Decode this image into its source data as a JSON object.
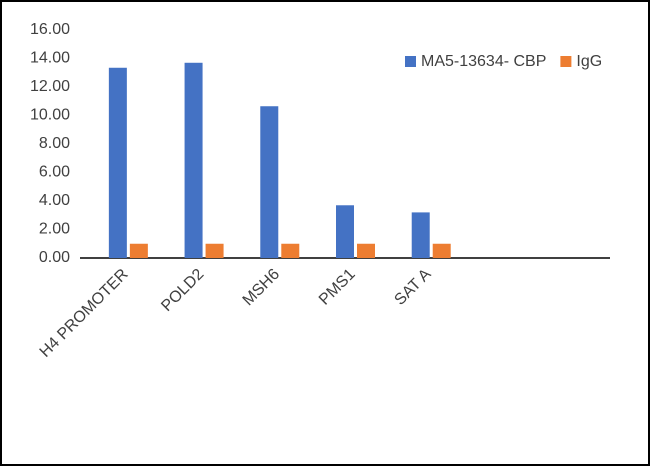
{
  "chart_data": {
    "type": "bar",
    "categories": [
      "H4 PROMOTER",
      "POLD2",
      "MSH6",
      "PMS1",
      "SAT A",
      null,
      null
    ],
    "series": [
      {
        "name": "MA5-13634- CBP",
        "color": "#4472c4",
        "values": [
          13.35,
          13.7,
          10.65,
          3.7,
          3.2,
          null,
          null
        ]
      },
      {
        "name": "IgG",
        "color": "#ed7d31",
        "values": [
          1,
          1,
          1,
          1,
          1,
          null,
          null
        ]
      }
    ],
    "ylim": [
      0,
      16
    ],
    "yticks": [
      {
        "value": 0,
        "label": "0.00"
      },
      {
        "value": 2,
        "label": "2.00"
      },
      {
        "value": 4,
        "label": "4.00"
      },
      {
        "value": 6,
        "label": "6.00"
      },
      {
        "value": 8,
        "label": "8.00"
      },
      {
        "value": 10,
        "label": "10.00"
      },
      {
        "value": 12,
        "label": "12.00"
      },
      {
        "value": 14,
        "label": "14.00"
      },
      {
        "value": 16,
        "label": "16.00"
      }
    ],
    "grid": false,
    "legend": "top-right"
  }
}
